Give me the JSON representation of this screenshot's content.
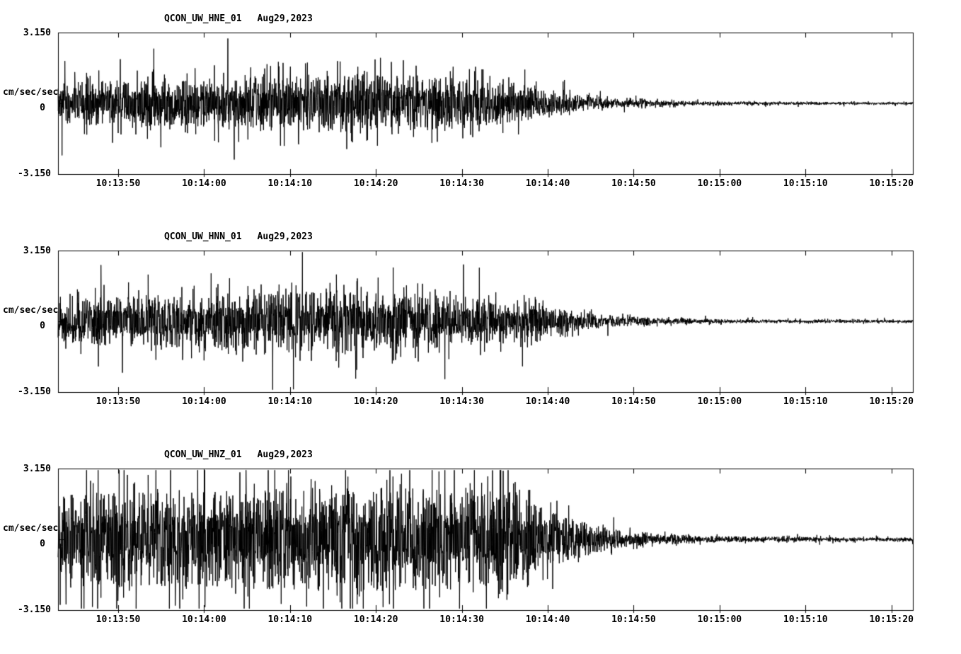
{
  "page": {
    "background": "#ffffff",
    "foreground": "#000000"
  },
  "chart_data": [
    {
      "type": "line",
      "subtype": "seismogram",
      "title": "QCON_UW_HNE_01",
      "date": "Aug29,2023",
      "ylabel": "cm/sec/sec",
      "ymax_label": "3.150",
      "yzero_label": "0",
      "ymin_label": "-3.150",
      "ylim": [
        -3.15,
        3.15
      ],
      "x_ticks": [
        "10:13:50",
        "10:14:00",
        "10:14:10",
        "10:14:20",
        "10:14:30",
        "10:14:40",
        "10:14:50",
        "10:15:00",
        "10:15:10",
        "10:15:20"
      ],
      "x_first_tick_s": 7,
      "x_tick_step_s": 10,
      "x_span_s": 99.5,
      "line_color": "#000000",
      "seed": 101,
      "envelope": [
        [
          0,
          1.0
        ],
        [
          5,
          1.1
        ],
        [
          10,
          1.2
        ],
        [
          15,
          1.1
        ],
        [
          20,
          1.3
        ],
        [
          25,
          1.4
        ],
        [
          30,
          1.35
        ],
        [
          35,
          1.5
        ],
        [
          40,
          1.4
        ],
        [
          45,
          1.3
        ],
        [
          48,
          1.2
        ],
        [
          52,
          1.0
        ],
        [
          55,
          0.8
        ],
        [
          58,
          0.55
        ],
        [
          60,
          0.4
        ],
        [
          63,
          0.28
        ],
        [
          66,
          0.2
        ],
        [
          70,
          0.14
        ],
        [
          75,
          0.1
        ],
        [
          80,
          0.08
        ],
        [
          90,
          0.07
        ],
        [
          99.5,
          0.06
        ]
      ]
    },
    {
      "type": "line",
      "subtype": "seismogram",
      "title": "QCON_UW_HNN_01",
      "date": "Aug29,2023",
      "ylabel": "cm/sec/sec",
      "ymax_label": "3.150",
      "yzero_label": "0",
      "ymin_label": "-3.150",
      "ylim": [
        -3.15,
        3.15
      ],
      "x_ticks": [
        "10:13:50",
        "10:14:00",
        "10:14:10",
        "10:14:20",
        "10:14:30",
        "10:14:40",
        "10:14:50",
        "10:15:00",
        "10:15:10",
        "10:15:20"
      ],
      "x_first_tick_s": 7,
      "x_tick_step_s": 10,
      "x_span_s": 99.5,
      "line_color": "#000000",
      "seed": 202,
      "envelope": [
        [
          0,
          1.0
        ],
        [
          5,
          1.2
        ],
        [
          10,
          1.3
        ],
        [
          15,
          1.3
        ],
        [
          20,
          1.4
        ],
        [
          25,
          1.4
        ],
        [
          30,
          1.5
        ],
        [
          33,
          1.6
        ],
        [
          36,
          1.5
        ],
        [
          40,
          1.4
        ],
        [
          45,
          1.3
        ],
        [
          50,
          1.1
        ],
        [
          54,
          0.9
        ],
        [
          57,
          0.7
        ],
        [
          60,
          0.5
        ],
        [
          63,
          0.35
        ],
        [
          66,
          0.25
        ],
        [
          70,
          0.17
        ],
        [
          75,
          0.12
        ],
        [
          80,
          0.09
        ],
        [
          90,
          0.08
        ],
        [
          99.5,
          0.07
        ]
      ]
    },
    {
      "type": "line",
      "subtype": "seismogram",
      "title": "QCON_UW_HNZ_01",
      "date": "Aug29,2023",
      "ylabel": "cm/sec/sec",
      "ymax_label": "3.150",
      "yzero_label": "0",
      "ymin_label": "-3.150",
      "ylim": [
        -3.15,
        3.15
      ],
      "x_ticks": [
        "10:13:50",
        "10:14:00",
        "10:14:10",
        "10:14:20",
        "10:14:30",
        "10:14:40",
        "10:14:50",
        "10:15:00",
        "10:15:10",
        "10:15:20"
      ],
      "x_first_tick_s": 7,
      "x_tick_step_s": 10,
      "x_span_s": 99.5,
      "line_color": "#000000",
      "seed": 303,
      "envelope": [
        [
          0,
          2.2
        ],
        [
          5,
          2.4
        ],
        [
          10,
          2.3
        ],
        [
          15,
          2.5
        ],
        [
          20,
          2.4
        ],
        [
          25,
          2.5
        ],
        [
          28,
          2.6
        ],
        [
          32,
          2.5
        ],
        [
          36,
          2.6
        ],
        [
          40,
          2.5
        ],
        [
          44,
          2.6
        ],
        [
          48,
          2.4
        ],
        [
          52,
          2.2
        ],
        [
          55,
          1.8
        ],
        [
          58,
          1.3
        ],
        [
          60,
          1.0
        ],
        [
          62,
          0.75
        ],
        [
          64,
          0.55
        ],
        [
          67,
          0.4
        ],
        [
          70,
          0.28
        ],
        [
          74,
          0.2
        ],
        [
          78,
          0.15
        ],
        [
          85,
          0.12
        ],
        [
          92,
          0.1
        ],
        [
          99.5,
          0.09
        ]
      ]
    }
  ]
}
